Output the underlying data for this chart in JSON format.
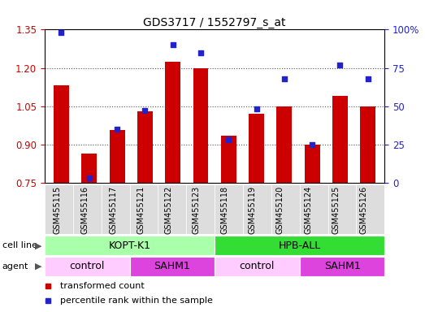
{
  "title": "GDS3717 / 1552797_s_at",
  "samples": [
    "GSM455115",
    "GSM455116",
    "GSM455117",
    "GSM455121",
    "GSM455122",
    "GSM455123",
    "GSM455118",
    "GSM455119",
    "GSM455120",
    "GSM455124",
    "GSM455125",
    "GSM455126"
  ],
  "transformed_count": [
    1.13,
    0.865,
    0.955,
    1.03,
    1.225,
    1.2,
    0.935,
    1.02,
    1.05,
    0.9,
    1.09,
    1.05
  ],
  "percentile_rank": [
    98,
    3,
    35,
    47,
    90,
    85,
    28,
    48,
    68,
    25,
    77,
    68
  ],
  "ylim_left": [
    0.75,
    1.35
  ],
  "ylim_right": [
    0,
    100
  ],
  "yticks_left": [
    0.75,
    0.9,
    1.05,
    1.2,
    1.35
  ],
  "yticks_right": [
    0,
    25,
    50,
    75,
    100
  ],
  "bar_color": "#cc0000",
  "dot_color": "#2222cc",
  "cell_line_groups": [
    {
      "label": "KOPT-K1",
      "start": 0,
      "end": 6,
      "color": "#aaffaa"
    },
    {
      "label": "HPB-ALL",
      "start": 6,
      "end": 12,
      "color": "#33dd33"
    }
  ],
  "agent_groups": [
    {
      "label": "control",
      "start": 0,
      "end": 3,
      "color": "#ffccff"
    },
    {
      "label": "SAHM1",
      "start": 3,
      "end": 6,
      "color": "#dd44dd"
    },
    {
      "label": "control",
      "start": 6,
      "end": 9,
      "color": "#ffccff"
    },
    {
      "label": "SAHM1",
      "start": 9,
      "end": 12,
      "color": "#dd44dd"
    }
  ],
  "legend_items": [
    {
      "label": "transformed count",
      "color": "#cc0000"
    },
    {
      "label": "percentile rank within the sample",
      "color": "#2222cc"
    }
  ],
  "grid_color": "#555555",
  "background_color": "#ffffff",
  "tick_label_color_left": "#cc0000",
  "tick_label_color_right": "#2222cc",
  "xtick_bg_color": "#dddddd",
  "row_label_color": "#555555"
}
